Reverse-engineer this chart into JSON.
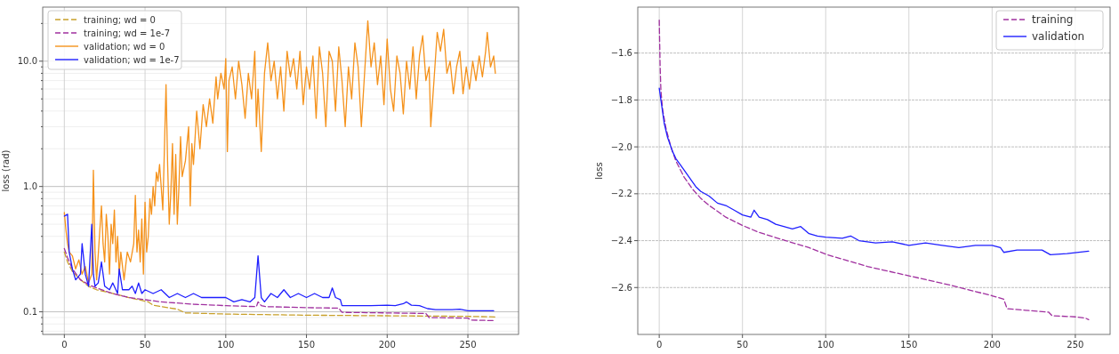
{
  "chart_data": [
    {
      "type": "line",
      "ylabel": "loss (rad)",
      "log": "y",
      "grid": true,
      "legend": "top left",
      "xlim": [
        -13.4,
        281.4
      ],
      "ylim": [
        0.066,
        27
      ],
      "xticks": [
        0,
        50,
        100,
        150,
        200,
        250
      ],
      "yticks": [
        {
          "value": 0.07,
          "label": null
        },
        {
          "value": 0.08,
          "label": null
        },
        {
          "value": 0.09,
          "label": null
        },
        {
          "value": 0.1,
          "label": "0.1"
        },
        {
          "value": 0.2,
          "label": null
        },
        {
          "value": 0.3,
          "label": null
        },
        {
          "value": 0.4,
          "label": null
        },
        {
          "value": 0.5,
          "label": null
        },
        {
          "value": 0.6,
          "label": null
        },
        {
          "value": 0.7,
          "label": null
        },
        {
          "value": 0.8,
          "label": null
        },
        {
          "value": 0.9,
          "label": null
        },
        {
          "value": 1,
          "label": "1.0"
        },
        {
          "value": 2,
          "label": null
        },
        {
          "value": 3,
          "label": null
        },
        {
          "value": 4,
          "label": null
        },
        {
          "value": 5,
          "label": null
        },
        {
          "value": 6,
          "label": null
        },
        {
          "value": 7,
          "label": null
        },
        {
          "value": 8,
          "label": null
        },
        {
          "value": 9,
          "label": null
        },
        {
          "value": 10,
          "label": "10.0"
        },
        {
          "value": 20,
          "label": null
        }
      ],
      "series": [
        {
          "name": "training; wd = 0",
          "color": "#c8a02a",
          "line_style": "dashed",
          "x": [
            0,
            2,
            5,
            10,
            15,
            20,
            30,
            40,
            52,
            55,
            70,
            75,
            100,
            150,
            200,
            250,
            268
          ],
          "values": [
            0.3,
            0.25,
            0.21,
            0.18,
            0.16,
            0.15,
            0.14,
            0.13,
            0.12,
            0.113,
            0.105,
            0.098,
            0.096,
            0.094,
            0.093,
            0.092,
            0.091
          ]
        },
        {
          "name": "training; wd = 1e-7",
          "color": "#a0309f",
          "line_style": "dashed",
          "x": [
            0,
            2,
            5,
            10,
            15,
            20,
            30,
            40,
            50,
            60,
            80,
            100,
            119,
            120,
            122,
            125,
            150,
            170,
            172,
            200,
            224,
            226,
            250,
            252,
            267
          ],
          "values": [
            0.32,
            0.27,
            0.22,
            0.18,
            0.165,
            0.155,
            0.14,
            0.13,
            0.125,
            0.12,
            0.115,
            0.112,
            0.11,
            0.12,
            0.112,
            0.11,
            0.108,
            0.107,
            0.099,
            0.098,
            0.097,
            0.09,
            0.089,
            0.086,
            0.085
          ]
        },
        {
          "name": "validation; wd = 0",
          "color": "#f5921b",
          "line_style": "solid",
          "x": [
            0,
            1,
            2,
            3,
            5,
            7,
            9,
            11,
            13,
            15,
            17,
            18,
            19,
            20,
            22,
            23,
            24,
            25,
            26,
            27,
            28,
            29,
            30,
            31,
            32,
            33,
            34,
            35,
            37,
            39,
            41,
            43,
            44,
            45,
            46,
            47,
            48,
            49,
            50,
            51,
            52,
            53,
            54,
            55,
            56,
            57,
            58,
            59,
            60,
            61,
            62,
            63,
            64,
            65,
            66,
            67,
            68,
            69,
            70,
            71,
            72,
            73,
            75,
            77,
            78,
            79,
            80,
            82,
            84,
            86,
            88,
            90,
            92,
            94,
            95,
            97,
            99,
            100,
            101,
            102,
            104,
            106,
            108,
            110,
            112,
            114,
            116,
            118,
            119,
            120,
            122,
            124,
            126,
            128,
            130,
            132,
            134,
            136,
            138,
            140,
            142,
            144,
            146,
            148,
            150,
            152,
            154,
            156,
            158,
            160,
            162,
            164,
            166,
            168,
            170,
            172,
            174,
            176,
            178,
            180,
            182,
            184,
            186,
            188,
            190,
            192,
            194,
            196,
            198,
            200,
            202,
            204,
            206,
            208,
            210,
            212,
            214,
            216,
            218,
            220,
            222,
            224,
            226,
            227,
            229,
            231,
            233,
            235,
            237,
            239,
            241,
            243,
            245,
            247,
            249,
            251,
            253,
            255,
            257,
            259,
            261,
            262,
            264,
            266,
            267
          ],
          "values": [
            0.62,
            0.45,
            0.35,
            0.3,
            0.28,
            0.22,
            0.26,
            0.2,
            0.23,
            0.17,
            0.2,
            1.35,
            0.3,
            0.18,
            0.45,
            0.7,
            0.35,
            0.25,
            0.6,
            0.4,
            0.2,
            0.5,
            0.35,
            0.65,
            0.25,
            0.4,
            0.2,
            0.3,
            0.18,
            0.3,
            0.25,
            0.35,
            0.85,
            0.3,
            0.45,
            0.25,
            0.55,
            0.2,
            0.75,
            0.3,
            0.4,
            0.8,
            0.6,
            1.0,
            0.7,
            1.3,
            1.1,
            1.5,
            1.0,
            0.65,
            2.0,
            6.5,
            1.5,
            0.5,
            0.9,
            2.2,
            0.6,
            1.8,
            0.5,
            1.0,
            2.5,
            1.2,
            1.6,
            3.0,
            0.7,
            2.2,
            1.5,
            4.0,
            2.0,
            4.5,
            3.0,
            5.0,
            3.2,
            7.5,
            5.0,
            8.0,
            6.0,
            10.5,
            1.9,
            7.0,
            9.0,
            5.0,
            10.0,
            6.5,
            3.5,
            8.0,
            5.0,
            12.0,
            3.0,
            6.0,
            1.9,
            8.0,
            14.0,
            7.0,
            10.0,
            5.0,
            9.0,
            4.0,
            12.0,
            7.5,
            10.5,
            6.0,
            12.0,
            4.5,
            9.0,
            6.0,
            11.0,
            3.5,
            13.0,
            8.0,
            3.0,
            12.0,
            10.0,
            4.0,
            13.0,
            7.0,
            3.0,
            9.0,
            5.0,
            14.0,
            9.0,
            3.0,
            8.0,
            21.0,
            9.0,
            14.0,
            6.5,
            11.0,
            4.5,
            15.0,
            6.0,
            4.0,
            11.0,
            8.0,
            3.8,
            10.0,
            6.0,
            13.0,
            5.0,
            11.0,
            16.0,
            7.0,
            9.0,
            3.0,
            7.0,
            17.0,
            12.0,
            18.0,
            8.0,
            10.0,
            5.5,
            9.0,
            12.0,
            5.5,
            9.0,
            6.0,
            10.0,
            7.0,
            11.0,
            7.5,
            12.0,
            17.0,
            9.0,
            11.0,
            8.0
          ]
        },
        {
          "name": "validation; wd = 1e-7",
          "color": "#1f1fff",
          "line_style": "solid",
          "x": [
            0,
            2,
            3,
            5,
            7,
            10,
            11,
            13,
            15,
            17,
            18,
            19,
            21,
            23,
            25,
            28,
            30,
            33,
            34,
            36,
            40,
            42,
            44,
            46,
            48,
            50,
            55,
            60,
            65,
            70,
            75,
            80,
            85,
            90,
            95,
            100,
            105,
            110,
            115,
            118,
            120,
            122,
            124,
            128,
            132,
            136,
            140,
            145,
            150,
            155,
            160,
            164,
            166,
            168,
            171,
            172,
            180,
            190,
            200,
            205,
            210,
            212,
            215,
            220,
            225,
            230,
            240,
            245,
            250,
            266
          ],
          "values": [
            0.58,
            0.6,
            0.3,
            0.22,
            0.18,
            0.2,
            0.35,
            0.2,
            0.16,
            0.5,
            0.2,
            0.16,
            0.17,
            0.25,
            0.16,
            0.15,
            0.17,
            0.14,
            0.22,
            0.15,
            0.15,
            0.16,
            0.14,
            0.17,
            0.14,
            0.15,
            0.14,
            0.15,
            0.13,
            0.14,
            0.13,
            0.14,
            0.13,
            0.13,
            0.13,
            0.13,
            0.12,
            0.125,
            0.12,
            0.13,
            0.28,
            0.13,
            0.12,
            0.14,
            0.13,
            0.15,
            0.13,
            0.14,
            0.13,
            0.14,
            0.13,
            0.13,
            0.155,
            0.13,
            0.125,
            0.112,
            0.112,
            0.112,
            0.113,
            0.112,
            0.116,
            0.12,
            0.113,
            0.112,
            0.106,
            0.104,
            0.104,
            0.105,
            0.102,
            0.102
          ]
        }
      ]
    },
    {
      "type": "line",
      "ylabel": "loss",
      "grid": true,
      "legend": "top right",
      "xlim": [
        -12.9,
        270.9
      ],
      "ylim": [
        -2.8,
        -1.404
      ],
      "xticks": [
        0,
        50,
        100,
        150,
        200,
        250
      ],
      "yticks": [
        {
          "value": -2.6,
          "label": "−2.6"
        },
        {
          "value": -2.4,
          "label": "−2.4"
        },
        {
          "value": -2.2,
          "label": "−2.2"
        },
        {
          "value": -2.0,
          "label": "−2.0"
        },
        {
          "value": -1.8,
          "label": "−1.8"
        },
        {
          "value": -1.6,
          "label": "−1.6"
        }
      ],
      "series": [
        {
          "name": "training",
          "color": "#a0309f",
          "line_style": "dashed",
          "x": [
            0,
            0.5,
            1,
            2,
            4,
            7,
            10,
            15,
            20,
            25,
            30,
            40,
            50,
            60,
            76,
            90,
            101,
            125,
            150,
            175,
            200,
            207,
            209,
            220,
            234,
            236,
            250,
            256,
            258
          ],
          "values": [
            -1.46,
            -1.65,
            -1.76,
            -1.84,
            -1.92,
            -2.0,
            -2.06,
            -2.13,
            -2.18,
            -2.22,
            -2.25,
            -2.3,
            -2.335,
            -2.365,
            -2.4,
            -2.43,
            -2.46,
            -2.51,
            -2.55,
            -2.59,
            -2.635,
            -2.65,
            -2.69,
            -2.697,
            -2.705,
            -2.72,
            -2.725,
            -2.73,
            -2.737
          ]
        },
        {
          "name": "validation",
          "color": "#1f1fff",
          "line_style": "solid",
          "x": [
            0,
            1,
            3,
            5,
            8,
            10,
            13,
            15,
            20,
            22,
            25,
            30,
            35,
            40,
            45,
            50,
            55,
            57,
            60,
            65,
            70,
            80,
            85,
            90,
            95,
            100,
            110,
            115,
            120,
            130,
            140,
            150,
            160,
            170,
            180,
            190,
            200,
            205,
            207,
            215,
            230,
            235,
            245,
            258
          ],
          "values": [
            -1.75,
            -1.8,
            -1.9,
            -1.96,
            -2.02,
            -2.05,
            -2.08,
            -2.1,
            -2.15,
            -2.17,
            -2.19,
            -2.21,
            -2.24,
            -2.25,
            -2.27,
            -2.29,
            -2.3,
            -2.27,
            -2.3,
            -2.31,
            -2.33,
            -2.35,
            -2.34,
            -2.37,
            -2.38,
            -2.385,
            -2.39,
            -2.38,
            -2.4,
            -2.41,
            -2.405,
            -2.42,
            -2.41,
            -2.42,
            -2.43,
            -2.42,
            -2.42,
            -2.43,
            -2.45,
            -2.44,
            -2.44,
            -2.46,
            -2.455,
            -2.445
          ]
        }
      ]
    }
  ]
}
